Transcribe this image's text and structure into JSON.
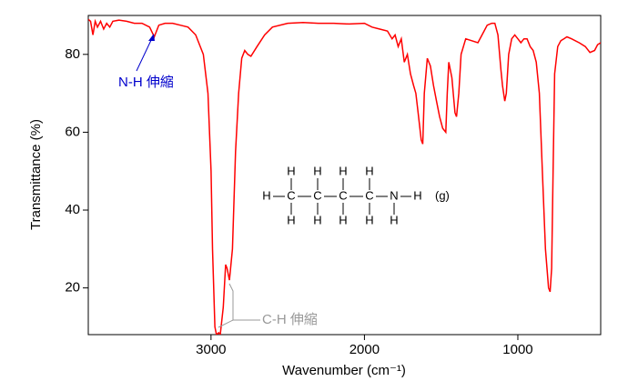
{
  "chart_data": {
    "type": "line",
    "x_label": "Wavenumber (cm⁻¹)",
    "y_label": "Transmittance (%)",
    "x": [
      3800,
      3785,
      3770,
      3755,
      3740,
      3720,
      3700,
      3680,
      3660,
      3640,
      3600,
      3550,
      3500,
      3450,
      3400,
      3370,
      3340,
      3300,
      3250,
      3200,
      3150,
      3100,
      3050,
      3020,
      3000,
      2990,
      2975,
      2965,
      2950,
      2940,
      2920,
      2905,
      2895,
      2880,
      2860,
      2840,
      2820,
      2800,
      2780,
      2760,
      2740,
      2700,
      2650,
      2600,
      2500,
      2400,
      2300,
      2200,
      2100,
      2000,
      1950,
      1900,
      1850,
      1820,
      1800,
      1780,
      1760,
      1740,
      1720,
      1700,
      1680,
      1665,
      1650,
      1630,
      1620,
      1610,
      1590,
      1570,
      1550,
      1530,
      1510,
      1490,
      1470,
      1460,
      1450,
      1430,
      1410,
      1400,
      1385,
      1370,
      1340,
      1300,
      1260,
      1220,
      1200,
      1170,
      1150,
      1130,
      1110,
      1100,
      1085,
      1075,
      1060,
      1040,
      1020,
      1000,
      980,
      960,
      940,
      920,
      900,
      880,
      860,
      840,
      820,
      800,
      790,
      780,
      770,
      760,
      740,
      720,
      700,
      680,
      650,
      600,
      560,
      530,
      500,
      480,
      460
    ],
    "values": [
      89,
      88.5,
      85,
      88.5,
      87,
      88.5,
      86.5,
      88,
      87,
      88.5,
      88.8,
      88.5,
      88,
      88,
      87,
      84.5,
      87.5,
      88,
      88,
      87.5,
      87,
      85,
      80,
      70,
      50,
      30,
      10,
      8,
      8.5,
      8,
      15,
      26,
      25,
      22,
      30,
      55,
      70,
      79,
      81,
      80,
      79.5,
      82,
      85,
      87,
      88,
      88.2,
      88,
      88,
      87.8,
      88,
      87,
      86.5,
      86,
      84,
      85,
      82,
      84,
      78,
      80,
      75,
      72,
      70,
      65,
      58,
      57,
      70,
      79,
      77,
      72,
      68,
      64,
      61,
      60,
      70,
      78,
      74,
      65,
      64,
      70,
      80,
      84,
      83.5,
      83,
      86,
      87.5,
      88,
      88,
      85,
      76,
      72,
      68,
      70,
      80,
      84,
      85,
      84,
      83,
      84,
      84,
      82,
      81,
      78,
      70,
      50,
      30,
      20,
      19,
      25,
      50,
      75,
      82,
      83.5,
      84,
      84.5,
      84,
      83,
      82,
      80.5,
      81,
      82.5,
      83
    ],
    "color": "#ff0000",
    "xlim": [
      3800,
      460
    ],
    "ylim": [
      8,
      90
    ],
    "xticks": [
      3000,
      2000,
      1000
    ],
    "yticks": [
      20,
      40,
      60,
      80
    ],
    "annotations": [
      {
        "text": "N-H 伸縮",
        "color": "#0000cc"
      },
      {
        "text": "C-H 伸縮",
        "color": "#999999"
      }
    ],
    "molecule": {
      "atoms": [
        "H",
        "H",
        "H",
        "H",
        "H",
        "C",
        "C",
        "C",
        "C",
        "N",
        "H",
        "(g)",
        "H",
        "H",
        "H",
        "H",
        "H"
      ]
    }
  }
}
